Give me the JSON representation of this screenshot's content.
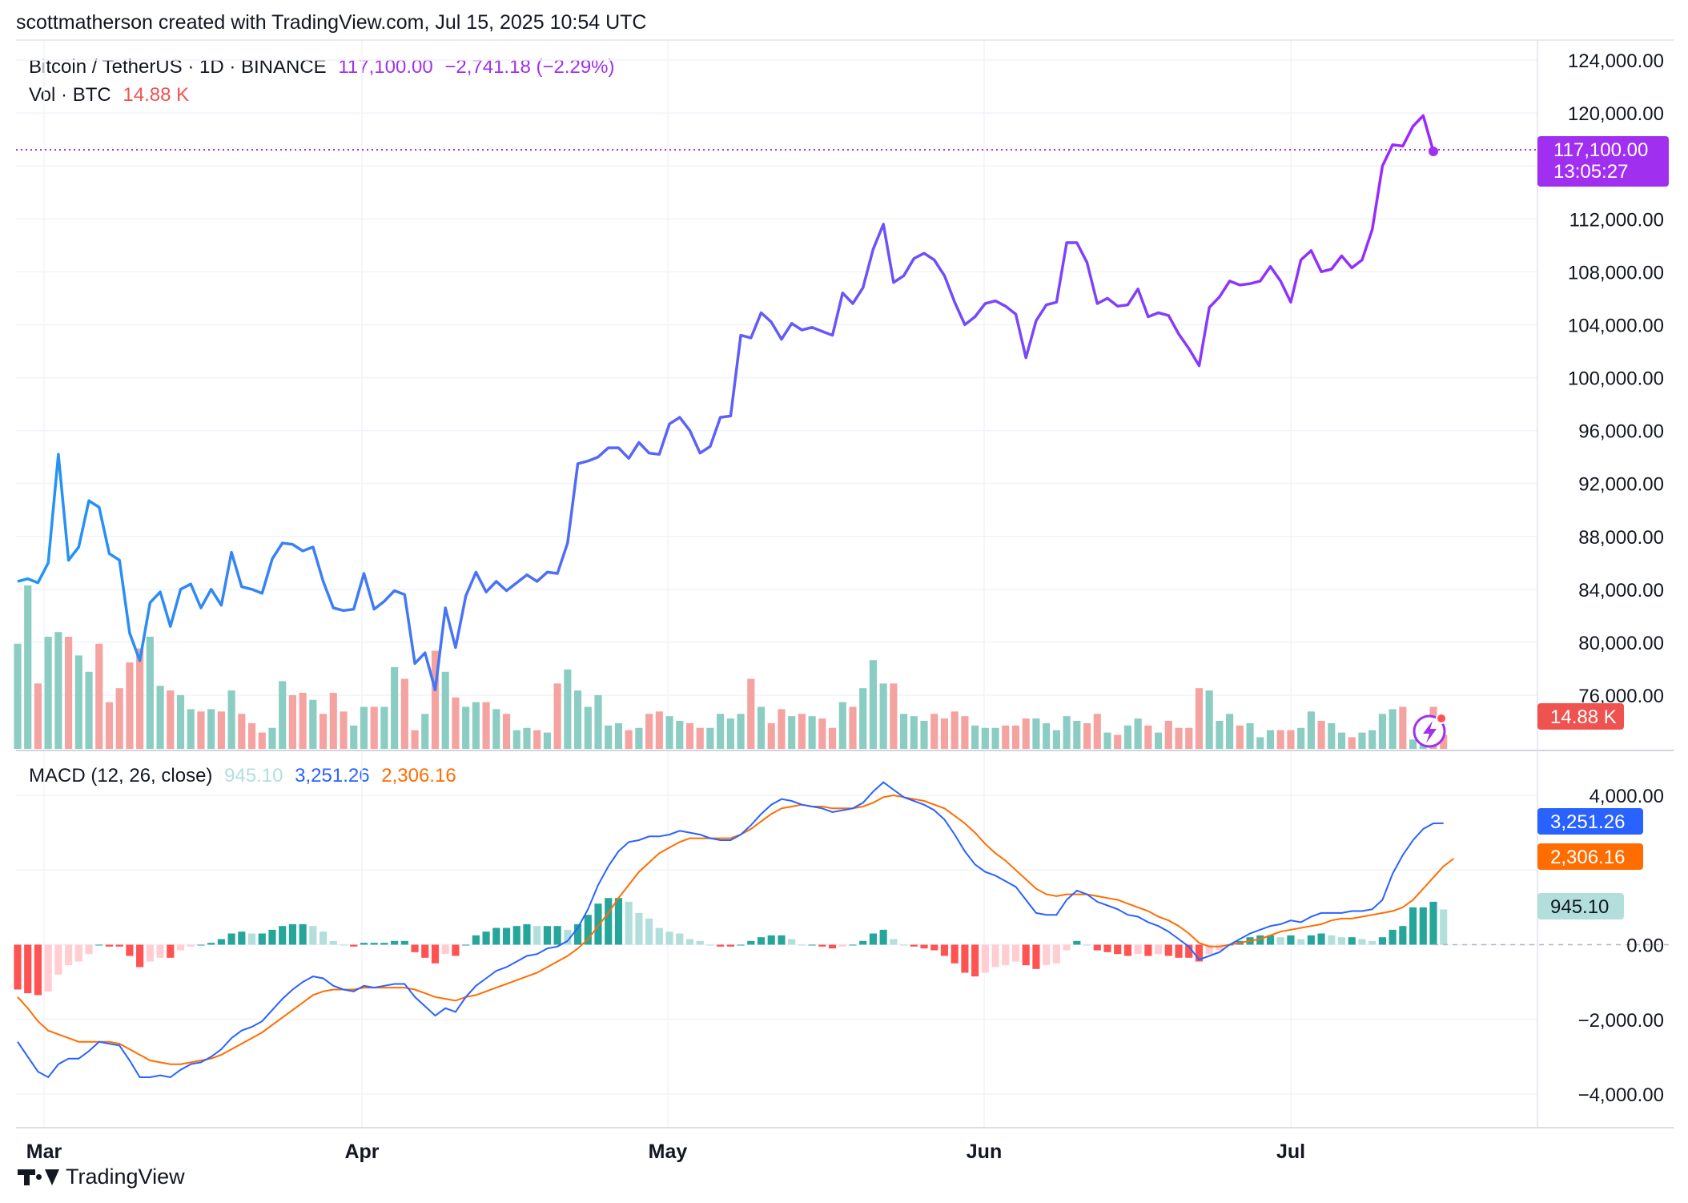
{
  "header": {
    "credit": "scottmatherson created with TradingView.com, Jul 15, 2025 10:54 UTC"
  },
  "legend": {
    "symbol": "Bitcoin / TetherUS · 1D · BINANCE",
    "price": "117,100.00",
    "change": "−2,741.18 (−2.29%)",
    "vol_label": "Vol · BTC",
    "vol_value": "14.88 K",
    "macd_label": "MACD (12, 26, close)",
    "macd_hist": "945.10",
    "macd_line": "3,251.26",
    "macd_signal": "2,306.16"
  },
  "price_axis": {
    "ticks": [
      "124,000.00",
      "120,000.00",
      "112,000.00",
      "108,000.00",
      "104,000.00",
      "100,000.00",
      "96,000.00",
      "92,000.00",
      "88,000.00",
      "84,000.00",
      "80,000.00",
      "76,000.00"
    ],
    "current_label": "117,100.00",
    "countdown": "13:05:27",
    "volume_label": "14.88 K"
  },
  "macd_axis": {
    "ticks": [
      "4,000.00",
      "0.00",
      "−2,000.00",
      "−4,000.00"
    ],
    "line_label": "3,251.26",
    "signal_label": "2,306.16",
    "hist_label": "945.10"
  },
  "time_axis": {
    "labels": [
      "Mar",
      "Apr",
      "May",
      "Jun",
      "Jul"
    ]
  },
  "footer": {
    "brand": "TradingView"
  },
  "colors": {
    "price_start": "#2196f3",
    "price_end": "#9c27ff",
    "last_price": "#a12ff0",
    "vol_up": "#8ccdc3",
    "vol_down": "#f4a3a1",
    "macd_line": "#2962ff",
    "signal_line": "#ff6d00",
    "hist_up_strong": "#26a69a",
    "hist_up_weak": "#b2dfdb",
    "hist_down_strong": "#ff5252",
    "hist_down_weak": "#ffcdd2",
    "grid": "#f0f3fa",
    "vol_label_bg": "#ef5350"
  },
  "chart_data": [
    {
      "type": "line",
      "title": "Bitcoin / TetherUS · 1D · BINANCE",
      "x_start": "2025-02-28",
      "x_end": "2025-07-15",
      "y_axis": {
        "min": 74000,
        "max": 124500
      },
      "close": [
        84600,
        84800,
        84500,
        86000,
        94200,
        86200,
        87200,
        90700,
        90200,
        86700,
        86200,
        80700,
        78600,
        83000,
        83800,
        81200,
        84000,
        84400,
        82600,
        84000,
        82800,
        86800,
        84200,
        84000,
        83700,
        86300,
        87500,
        87400,
        86900,
        87200,
        84600,
        82600,
        82400,
        82500,
        85200,
        82500,
        83100,
        83900,
        83600,
        78400,
        79200,
        76400,
        82600,
        79600,
        83500,
        85300,
        83800,
        84600,
        83900,
        84500,
        85100,
        84600,
        85300,
        85200,
        87500,
        93500,
        93700,
        94000,
        94700,
        94700,
        93900,
        95100,
        94300,
        94200,
        96500,
        97000,
        96000,
        94300,
        94800,
        97000,
        97100,
        103200,
        103000,
        104900,
        104200,
        102900,
        104100,
        103600,
        103800,
        103500,
        103200,
        106400,
        105600,
        106800,
        109700,
        111600,
        107200,
        107700,
        109000,
        109400,
        108900,
        107700,
        105700,
        104000,
        104600,
        105600,
        105800,
        105400,
        104800,
        101500,
        104300,
        105500,
        105700,
        110200,
        110200,
        108700,
        105600,
        106000,
        105400,
        105500,
        106700,
        104600,
        104900,
        104700,
        103300,
        102200,
        100900,
        105300,
        106100,
        107300,
        107000,
        107100,
        107300,
        108400,
        107300,
        105700,
        108900,
        109600,
        108000,
        108200,
        109200,
        108300,
        108900,
        111200,
        116000,
        117600,
        117500,
        119000,
        119800,
        117100
      ],
      "volume_k": [
        45,
        70,
        28,
        48,
        50,
        48,
        40,
        33,
        45,
        20,
        26,
        37,
        43,
        48,
        27,
        25,
        23,
        17,
        16,
        17,
        16,
        25,
        15,
        11,
        7,
        9,
        29,
        23,
        24,
        21,
        15,
        24,
        16,
        10,
        18,
        18,
        18,
        35,
        30,
        8,
        15,
        42,
        33,
        22,
        18,
        20,
        20,
        17,
        15,
        8,
        9,
        8,
        7,
        28,
        34,
        25,
        18,
        23,
        10,
        11,
        8,
        9,
        15,
        16,
        14,
        12,
        11,
        9,
        9,
        15,
        13,
        15,
        30,
        18,
        11,
        17,
        14,
        15,
        14,
        13,
        9,
        20,
        18,
        26,
        38,
        28,
        28,
        15,
        14,
        12,
        15,
        13,
        16,
        14,
        10,
        9,
        9,
        10,
        10,
        13,
        13,
        11,
        8,
        14,
        12,
        11,
        15,
        7,
        6,
        10,
        13,
        10,
        7,
        12,
        9,
        9,
        26,
        25,
        12,
        15,
        10,
        11,
        5,
        8,
        8,
        8,
        9,
        16,
        12,
        11,
        7,
        5,
        7,
        8,
        15,
        17,
        18,
        4,
        8,
        18,
        6
      ],
      "vol_unit": "K BTC"
    },
    {
      "type": "line",
      "title": "MACD (12, 26, close)",
      "x_start": "2025-02-28",
      "x_end": "2025-07-15",
      "y_axis": {
        "min": -4300,
        "max": 4400
      },
      "macd": [
        -2600,
        -3000,
        -3400,
        -3550,
        -3200,
        -3050,
        -3050,
        -2850,
        -2600,
        -2650,
        -2700,
        -3100,
        -3550,
        -3550,
        -3500,
        -3550,
        -3350,
        -3200,
        -3150,
        -3000,
        -2800,
        -2500,
        -2300,
        -2200,
        -2050,
        -1750,
        -1450,
        -1200,
        -1000,
        -850,
        -900,
        -1100,
        -1200,
        -1250,
        -1100,
        -1150,
        -1100,
        -1050,
        -1050,
        -1400,
        -1650,
        -1900,
        -1700,
        -1800,
        -1400,
        -1100,
        -900,
        -700,
        -600,
        -450,
        -300,
        -250,
        -100,
        -50,
        100,
        450,
        950,
        1600,
        2100,
        2500,
        2750,
        2800,
        2900,
        2900,
        2950,
        3050,
        3000,
        2950,
        2850,
        2800,
        2800,
        2950,
        3200,
        3500,
        3750,
        3900,
        3850,
        3750,
        3700,
        3650,
        3550,
        3600,
        3650,
        3800,
        4100,
        4350,
        4150,
        3950,
        3850,
        3750,
        3600,
        3350,
        2950,
        2500,
        2150,
        1950,
        1850,
        1700,
        1550,
        1200,
        850,
        800,
        800,
        1200,
        1450,
        1350,
        1150,
        1050,
        950,
        800,
        750,
        600,
        500,
        350,
        150,
        -50,
        -400,
        -300,
        -200,
        0,
        150,
        300,
        400,
        500,
        550,
        650,
        600,
        750,
        850,
        850,
        850,
        900,
        900,
        950,
        1200,
        1900,
        2400,
        2800,
        3100,
        3250,
        3251
      ],
      "signal": [
        -1400,
        -1700,
        -2050,
        -2300,
        -2400,
        -2500,
        -2600,
        -2600,
        -2600,
        -2600,
        -2650,
        -2800,
        -2950,
        -3100,
        -3150,
        -3200,
        -3200,
        -3150,
        -3100,
        -3050,
        -2950,
        -2800,
        -2650,
        -2500,
        -2350,
        -2150,
        -1950,
        -1750,
        -1550,
        -1350,
        -1250,
        -1200,
        -1200,
        -1200,
        -1150,
        -1150,
        -1150,
        -1150,
        -1150,
        -1200,
        -1300,
        -1400,
        -1450,
        -1500,
        -1400,
        -1350,
        -1250,
        -1150,
        -1050,
        -950,
        -850,
        -750,
        -600,
        -450,
        -300,
        -100,
        150,
        500,
        850,
        1250,
        1600,
        1950,
        2200,
        2450,
        2600,
        2750,
        2850,
        2850,
        2850,
        2850,
        2850,
        2950,
        3100,
        3300,
        3500,
        3650,
        3700,
        3750,
        3700,
        3700,
        3650,
        3650,
        3650,
        3700,
        3800,
        3950,
        4000,
        3950,
        3900,
        3850,
        3750,
        3650,
        3450,
        3250,
        3000,
        2700,
        2450,
        2250,
        2000,
        1750,
        1500,
        1350,
        1300,
        1350,
        1350,
        1350,
        1300,
        1250,
        1200,
        1100,
        1000,
        900,
        750,
        650,
        500,
        300,
        50,
        -50,
        -50,
        0,
        50,
        100,
        150,
        250,
        350,
        400,
        450,
        500,
        550,
        650,
        700,
        700,
        750,
        800,
        850,
        900,
        1000,
        1200,
        1500,
        1800,
        2100,
        2306
      ],
      "histogram": [
        -1200,
        -1300,
        -1350,
        -1250,
        -800,
        -550,
        -450,
        -250,
        0,
        -50,
        -50,
        -300,
        -600,
        -450,
        -350,
        -350,
        -150,
        -50,
        0,
        50,
        150,
        300,
        350,
        300,
        300,
        400,
        500,
        550,
        550,
        500,
        350,
        100,
        0,
        -50,
        50,
        50,
        50,
        100,
        100,
        -200,
        -350,
        -500,
        -250,
        -300,
        0,
        250,
        350,
        450,
        450,
        500,
        550,
        500,
        500,
        500,
        400,
        550,
        800,
        1100,
        1250,
        1250,
        1150,
        850,
        700,
        450,
        350,
        300,
        150,
        100,
        0,
        -50,
        -50,
        0,
        100,
        200,
        250,
        250,
        150,
        0,
        0,
        -50,
        -100,
        -50,
        0,
        100,
        300,
        400,
        150,
        0,
        -50,
        -100,
        -150,
        -300,
        -500,
        -750,
        -850,
        -750,
        -600,
        -550,
        -450,
        -550,
        -650,
        -550,
        -500,
        -150,
        100,
        0,
        -150,
        -200,
        -250,
        -300,
        -250,
        -300,
        -250,
        -300,
        -350,
        -350,
        -450,
        -250,
        -150,
        0,
        100,
        200,
        250,
        250,
        200,
        250,
        150,
        250,
        300,
        250,
        200,
        200,
        150,
        100,
        200,
        400,
        500,
        1000,
        1000,
        1150,
        945
      ]
    }
  ]
}
